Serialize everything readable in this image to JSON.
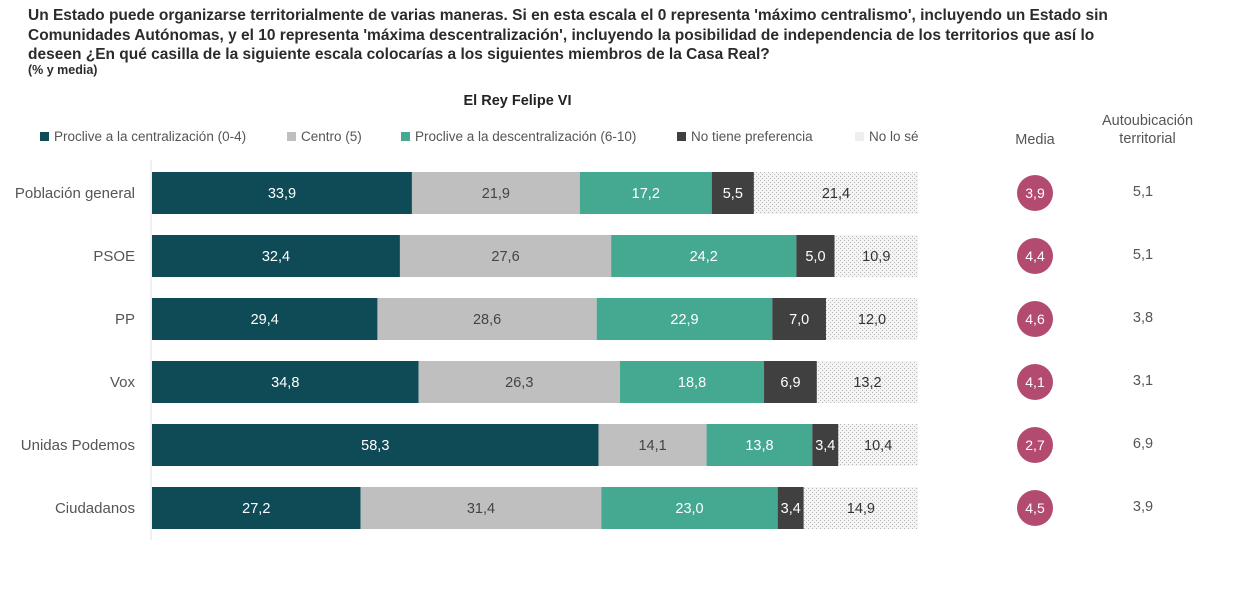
{
  "header": {
    "question": "Un Estado puede organizarse territorialmente de varias maneras. Si en esta escala el 0 representa 'máximo centralismo', incluyendo un Estado sin Comunidades Autónomas, y el 10 representa 'máxima descentralización', incluyendo la posibilidad de independencia de los territorios que así lo deseen ¿En qué casilla de la siguiente escala colocarías a los siguientes miembros de la Casa Real?",
    "subtitle": "(% y media)"
  },
  "columns": {
    "media": "Media",
    "autoubicacion": "Autoubicación territorial"
  },
  "chart_data": {
    "type": "bar",
    "orientation": "horizontal",
    "stacked": true,
    "title": "El Rey Felipe VI",
    "xlabel": "",
    "ylabel": "",
    "xlim": [
      0,
      100
    ],
    "grid": false,
    "legend_position": "top",
    "categories": [
      "Población general",
      "PSOE",
      "PP",
      "Vox",
      "Unidas Podemos",
      "Ciudadanos"
    ],
    "series": [
      {
        "name": "Proclive a la centralización (0-4)",
        "color": "#0f4a57",
        "label_color": "#ffffff",
        "pattern": "solid",
        "values": [
          33.9,
          32.4,
          29.4,
          34.8,
          58.3,
          27.2
        ],
        "labels": [
          "33,9",
          "32,4",
          "29,4",
          "34,8",
          "58,3",
          "27,2"
        ]
      },
      {
        "name": "Centro (5)",
        "color": "#bfbfbf",
        "label_color": "#444444",
        "pattern": "solid",
        "values": [
          21.9,
          27.6,
          28.6,
          26.3,
          14.1,
          31.4
        ],
        "labels": [
          "21,9",
          "27,6",
          "28,6",
          "26,3",
          "14,1",
          "31,4"
        ]
      },
      {
        "name": "Proclive a la descentralización (6-10)",
        "color": "#45a890",
        "label_color": "#ffffff",
        "pattern": "solid",
        "values": [
          17.2,
          24.2,
          22.9,
          18.8,
          13.8,
          23.0
        ],
        "labels": [
          "17,2",
          "24,2",
          "22,9",
          "18,8",
          "13,8",
          "23,0"
        ]
      },
      {
        "name": "No tiene preferencia",
        "color": "#404040",
        "label_color": "#ffffff",
        "pattern": "solid",
        "values": [
          5.5,
          5.0,
          7.0,
          6.9,
          3.4,
          3.4
        ],
        "labels": [
          "5,5",
          "5,0",
          "7,0",
          "6,9",
          "3,4",
          "3,4"
        ]
      },
      {
        "name": "No lo sé",
        "color": "#d9d9d9",
        "label_color": "#333333",
        "pattern": "dotted",
        "values": [
          21.4,
          10.9,
          12.0,
          13.2,
          10.4,
          14.9
        ],
        "labels": [
          "21,4",
          "10,9",
          "12,0",
          "13,2",
          "10,4",
          "14,9"
        ]
      }
    ],
    "media": [
      "3,9",
      "4,4",
      "4,6",
      "4,1",
      "2,7",
      "4,5"
    ],
    "media_color": "#b34a70",
    "autoubicacion_territorial": [
      "5,1",
      "5,1",
      "3,8",
      "3,1",
      "6,9",
      "3,9"
    ]
  }
}
